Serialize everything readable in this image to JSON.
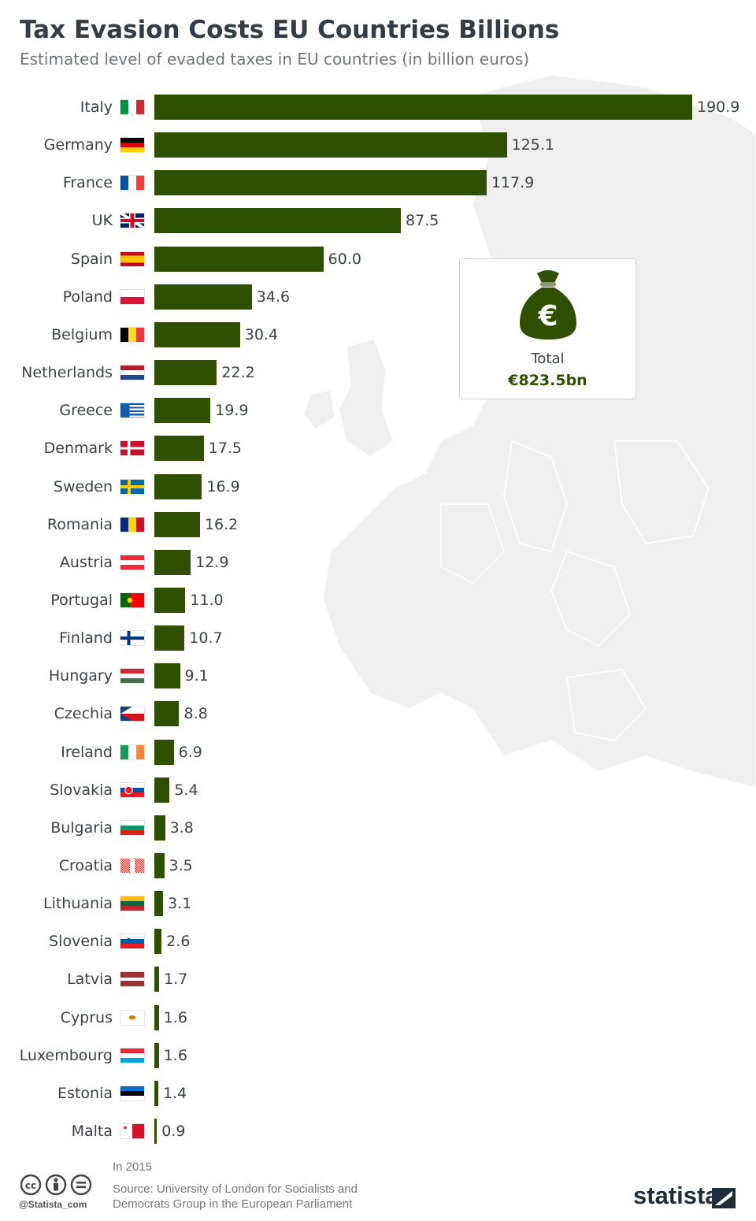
{
  "header": {
    "title": "Tax Evasion Costs EU Countries Billions",
    "subtitle": "Estimated level of evaded taxes in EU countries (in billion euros)"
  },
  "chart_data": {
    "type": "bar",
    "orientation": "horizontal",
    "categories": [
      "Italy",
      "Germany",
      "France",
      "UK",
      "Spain",
      "Poland",
      "Belgium",
      "Netherlands",
      "Greece",
      "Denmark",
      "Sweden",
      "Romania",
      "Austria",
      "Portugal",
      "Finland",
      "Hungary",
      "Czechia",
      "Ireland",
      "Slovakia",
      "Bulgaria",
      "Croatia",
      "Lithuania",
      "Slovenia",
      "Latvia",
      "Cyprus",
      "Luxembourg",
      "Estonia",
      "Malta"
    ],
    "values": [
      190.9,
      125.1,
      117.9,
      87.5,
      60.0,
      34.6,
      30.4,
      22.2,
      19.9,
      17.5,
      16.9,
      16.2,
      12.9,
      11.0,
      10.7,
      9.1,
      8.8,
      6.9,
      5.4,
      3.8,
      3.5,
      3.1,
      2.6,
      1.7,
      1.6,
      1.6,
      1.4,
      0.9
    ],
    "value_labels": [
      "190.9",
      "125.1",
      "117.9",
      "87.5",
      "60.0",
      "34.6",
      "30.4",
      "22.2",
      "19.9",
      "17.5",
      "16.9",
      "16.2",
      "12.9",
      "11.0",
      "10.7",
      "9.1",
      "8.8",
      "6.9",
      "5.4",
      "3.8",
      "3.5",
      "3.1",
      "2.6",
      "1.7",
      "1.6",
      "1.6",
      "1.4",
      "0.9"
    ],
    "xlim": [
      0,
      190.9
    ],
    "bar_color": "#2e5000",
    "grid": false,
    "legend": "none"
  },
  "callout": {
    "icon": "money-bag-euro-icon",
    "label": "Total",
    "value": "€823.5bn"
  },
  "footer": {
    "note": "In 2015",
    "source_line1": "Source: University of London for Socialists and",
    "source_line2": "Democrats Group in the European Parliament",
    "handle": "@Statista_com",
    "brand": "statista",
    "license_icons": [
      "cc-icon",
      "by-icon",
      "nd-icon"
    ]
  },
  "colors": {
    "bar": "#2e5000",
    "title": "#333c44",
    "subtitle": "#6f7478",
    "map": "#eeeeee"
  }
}
